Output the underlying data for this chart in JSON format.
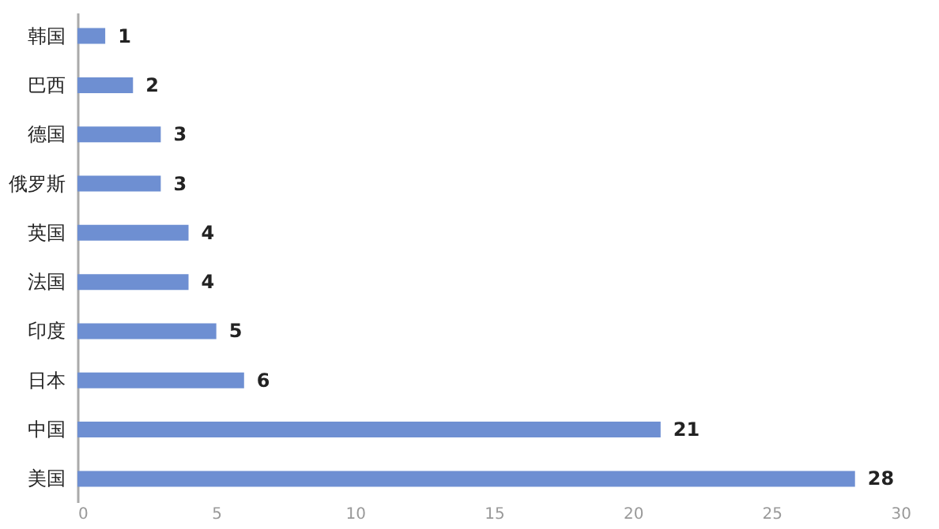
{
  "chart_data": {
    "type": "bar",
    "orientation": "horizontal",
    "categories": [
      "韩国",
      "巴西",
      "德国",
      "俄罗斯",
      "英国",
      "法国",
      "印度",
      "日本",
      "中国",
      "美国"
    ],
    "values": [
      1,
      2,
      3,
      3,
      4,
      4,
      5,
      6,
      21,
      28
    ],
    "color": "#6e8fd2",
    "xlim": [
      0,
      30
    ],
    "xticks": [
      0,
      5,
      10,
      15,
      20,
      25,
      30
    ],
    "grid": false,
    "data_labels": true
  }
}
